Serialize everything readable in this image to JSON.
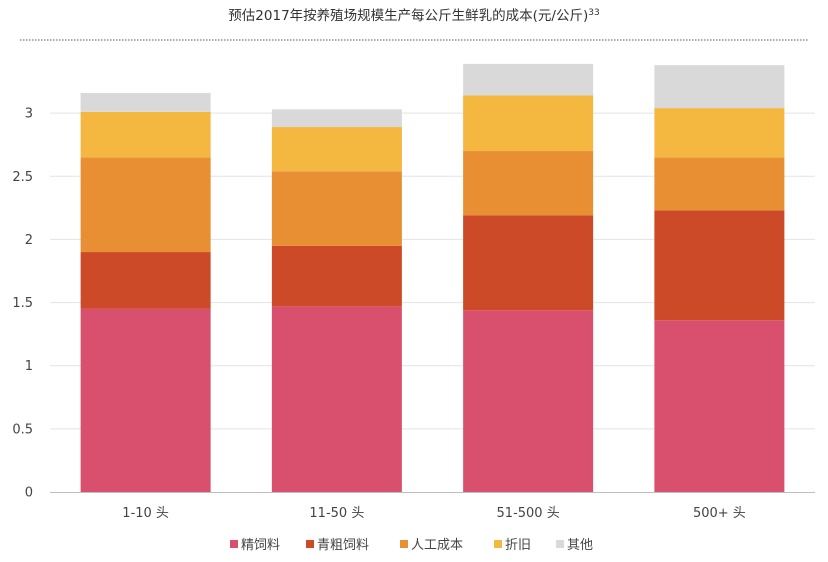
{
  "chart_data": {
    "type": "bar",
    "stacked": true,
    "title": "预估2017年按养殖场规模生产每公斤生鲜乳的成本(元/公斤)",
    "title_superscript": "33",
    "xlabel": "",
    "ylabel": "",
    "categories": [
      "1-10 头",
      "11-50 头",
      "51-500 头",
      "500+ 头"
    ],
    "ylim": [
      0,
      3.5
    ],
    "yticks": [
      0,
      0.5,
      1,
      1.5,
      2,
      2.5,
      3
    ],
    "ytick_labels": [
      "0",
      "0.5",
      "1",
      "1.5",
      "2",
      "2.5",
      "3"
    ],
    "grid": true,
    "legend_position": "bottom",
    "series": [
      {
        "name": "精饲料",
        "color": "#d9506e",
        "values": [
          1.45,
          1.47,
          1.44,
          1.36
        ]
      },
      {
        "name": "青粗饲料",
        "color": "#cc4a27",
        "values": [
          0.45,
          0.48,
          0.75,
          0.87
        ]
      },
      {
        "name": "人工成本",
        "color": "#e88f34",
        "values": [
          0.75,
          0.59,
          0.51,
          0.42
        ]
      },
      {
        "name": "折旧",
        "color": "#f4b740",
        "values": [
          0.36,
          0.35,
          0.44,
          0.39
        ]
      },
      {
        "name": "其他",
        "color": "#d9d9d9",
        "values": [
          0.15,
          0.14,
          0.25,
          0.34
        ]
      }
    ]
  }
}
